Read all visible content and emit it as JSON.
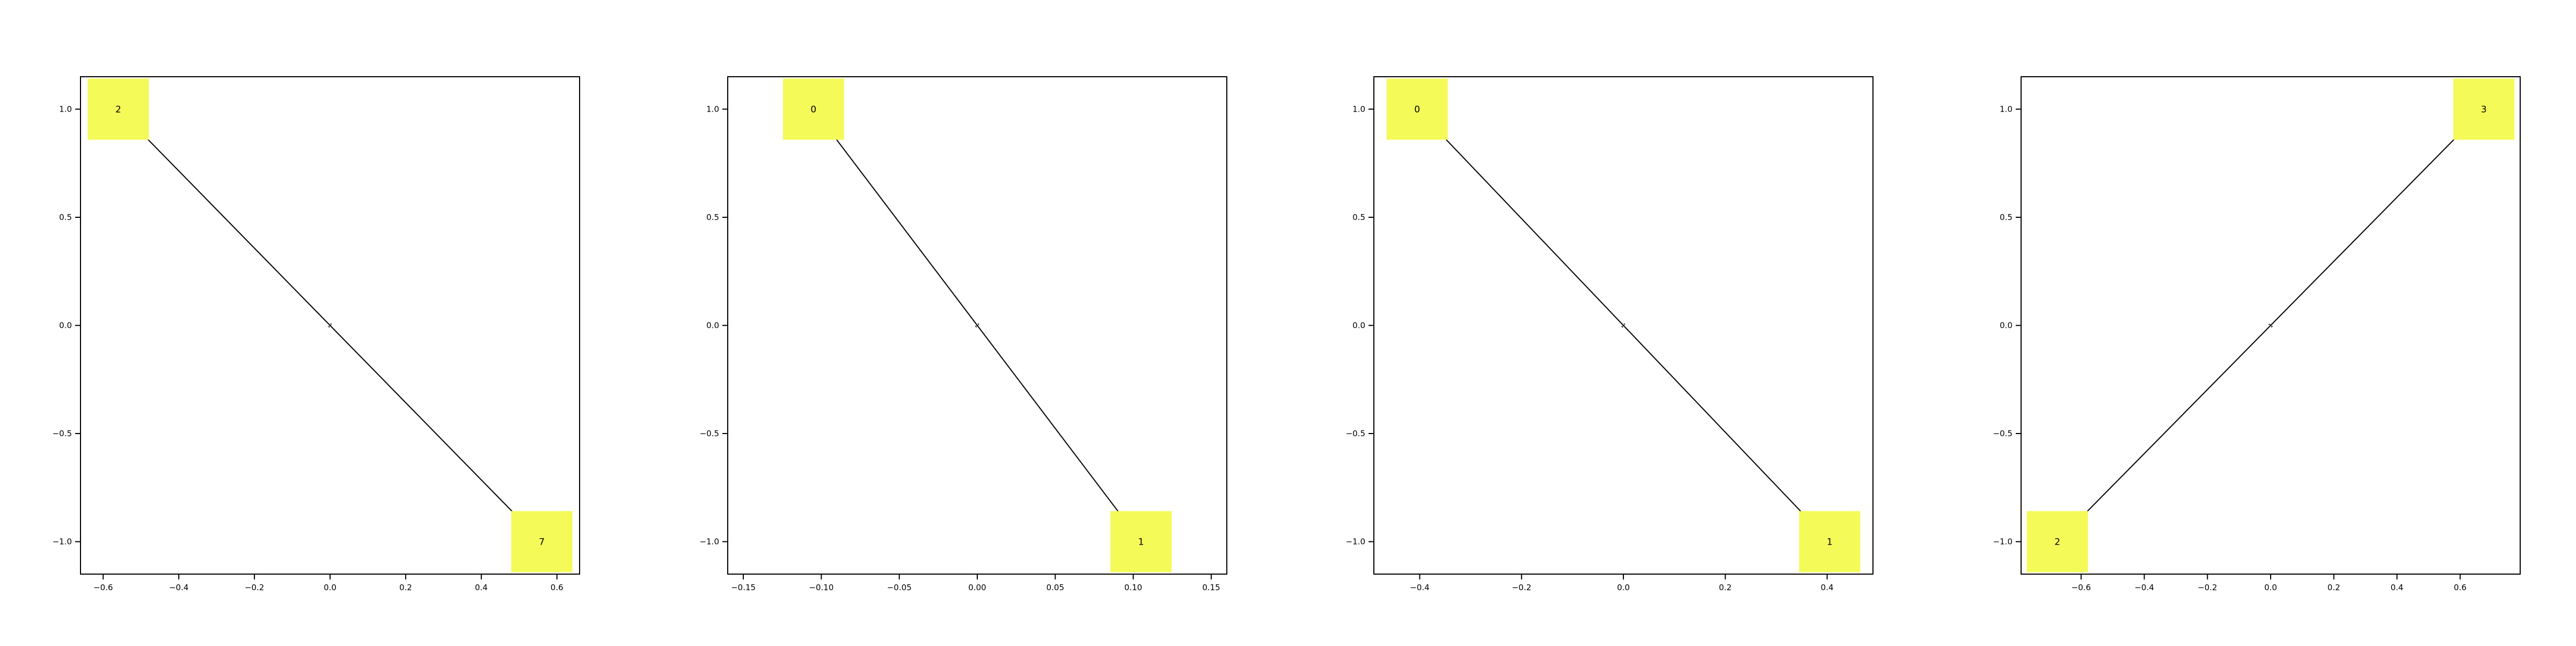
{
  "figure": {
    "panels_count": 4
  },
  "chart_data": [
    {
      "type": "graph",
      "xlim": [
        -0.66,
        0.66
      ],
      "ylim": [
        -1.15,
        1.15
      ],
      "x_ticks": [
        -0.6,
        -0.4,
        -0.2,
        0.0,
        0.2,
        0.4,
        0.6
      ],
      "x_tick_labels": [
        "−0.6",
        "−0.4",
        "−0.2",
        "0.0",
        "0.2",
        "0.4",
        "0.6"
      ],
      "y_ticks": [
        1.0,
        0.5,
        0.0,
        -0.5,
        -1.0
      ],
      "y_tick_labels": [
        "1.0",
        "0.5",
        "0.0",
        "−0.5",
        "−1.0"
      ],
      "nodes": [
        {
          "label": "2",
          "x": -0.56,
          "y": 1.0
        },
        {
          "label": "7",
          "x": 0.56,
          "y": -1.0
        }
      ],
      "edges": [
        {
          "from": 0,
          "to": 1,
          "label": "1"
        }
      ],
      "node_color": "#f4fa58",
      "edge_color": "#000000"
    },
    {
      "type": "graph",
      "xlim": [
        -0.16,
        0.16
      ],
      "ylim": [
        -1.15,
        1.15
      ],
      "x_ticks": [
        -0.15,
        -0.1,
        -0.05,
        0.0,
        0.05,
        0.1,
        0.15
      ],
      "x_tick_labels": [
        "−0.15",
        "−0.10",
        "−0.05",
        "0.00",
        "0.05",
        "0.10",
        "0.15"
      ],
      "y_ticks": [
        1.0,
        0.5,
        0.0,
        -0.5,
        -1.0
      ],
      "y_tick_labels": [
        "1.0",
        "0.5",
        "0.0",
        "−0.5",
        "−1.0"
      ],
      "nodes": [
        {
          "label": "0",
          "x": -0.105,
          "y": 1.0
        },
        {
          "label": "1",
          "x": 0.105,
          "y": -1.0
        }
      ],
      "edges": [
        {
          "from": 0,
          "to": 1,
          "label": "1"
        }
      ],
      "node_color": "#f4fa58",
      "edge_color": "#000000"
    },
    {
      "type": "graph",
      "xlim": [
        -0.49,
        0.49
      ],
      "ylim": [
        -1.15,
        1.15
      ],
      "x_ticks": [
        -0.4,
        -0.2,
        0.0,
        0.2,
        0.4
      ],
      "x_tick_labels": [
        "−0.4",
        "−0.2",
        "0.0",
        "0.2",
        "0.4"
      ],
      "y_ticks": [
        1.0,
        0.5,
        0.0,
        -0.5,
        -1.0
      ],
      "y_tick_labels": [
        "1.0",
        "0.5",
        "0.0",
        "−0.5",
        "−1.0"
      ],
      "nodes": [
        {
          "label": "0",
          "x": -0.405,
          "y": 1.0
        },
        {
          "label": "1",
          "x": 0.405,
          "y": -1.0
        }
      ],
      "edges": [
        {
          "from": 0,
          "to": 1,
          "label": "1"
        }
      ],
      "node_color": "#f4fa58",
      "edge_color": "#000000"
    },
    {
      "type": "graph",
      "xlim": [
        -0.79,
        0.79
      ],
      "ylim": [
        -1.15,
        1.15
      ],
      "x_ticks": [
        -0.6,
        -0.4,
        -0.2,
        0.0,
        0.2,
        0.4,
        0.6
      ],
      "x_tick_labels": [
        "−0.6",
        "−0.4",
        "−0.2",
        "0.0",
        "0.2",
        "0.4",
        "0.6"
      ],
      "y_ticks": [
        1.0,
        0.5,
        0.0,
        -0.5,
        -1.0
      ],
      "y_tick_labels": [
        "1.0",
        "0.5",
        "0.0",
        "−0.5",
        "−1.0"
      ],
      "nodes": [
        {
          "label": "3",
          "x": 0.675,
          "y": 1.0
        },
        {
          "label": "2",
          "x": -0.675,
          "y": -1.0
        }
      ],
      "edges": [
        {
          "from": 0,
          "to": 1,
          "label": "1"
        }
      ],
      "node_color": "#f4fa58",
      "edge_color": "#000000"
    }
  ]
}
